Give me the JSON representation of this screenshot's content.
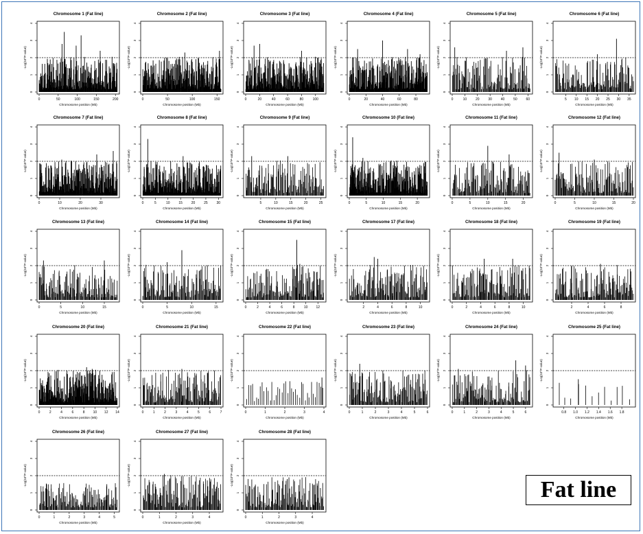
{
  "figure": {
    "legend_label": "Fat line"
  },
  "common": {
    "ylabel": "-Log(10^P-value)",
    "xlabel": "Chromosome position (Mb)",
    "y_ticks": [
      "0",
      "1",
      "2",
      "3",
      "4"
    ],
    "ylim": [
      0,
      4
    ],
    "threshold": 2.0,
    "threshold_style": "dashed",
    "bar_color": "#000000"
  },
  "chart_data": [
    {
      "type": "bar",
      "title": "Chromosome 1 (Fat line)",
      "xlim": [
        0,
        205
      ],
      "xticks": [
        "0",
        "50",
        "100",
        "150",
        "200"
      ],
      "peak": 3.5,
      "peaks": [
        [
          60,
          2.8
        ],
        [
          66,
          3.5
        ],
        [
          97,
          2.7
        ],
        [
          110,
          3.3
        ],
        [
          160,
          2.4
        ]
      ],
      "density": "high"
    },
    {
      "type": "bar",
      "title": "Chromosome 2 (Fat line)",
      "xlim": [
        0,
        158
      ],
      "xticks": [
        "0",
        "50",
        "100",
        "150"
      ],
      "peak": 2.4,
      "peaks": [
        [
          85,
          2.3
        ],
        [
          155,
          2.4
        ]
      ],
      "density": "high"
    },
    {
      "type": "bar",
      "title": "Chromosome 3 (Fat line)",
      "xlim": [
        0,
        112
      ],
      "xticks": [
        "0",
        "20",
        "40",
        "60",
        "80",
        "100"
      ],
      "peak": 2.8,
      "peaks": [
        [
          12,
          2.7
        ],
        [
          20,
          2.8
        ],
        [
          80,
          2.4
        ]
      ],
      "density": "high"
    },
    {
      "type": "bar",
      "title": "Chromosome 4 (Fat line)",
      "xlim": [
        0,
        94
      ],
      "xticks": [
        "0",
        "20",
        "40",
        "60",
        "80"
      ],
      "peak": 3.0,
      "peaks": [
        [
          10,
          2.5
        ],
        [
          40,
          3.0
        ],
        [
          70,
          2.5
        ],
        [
          85,
          2.2
        ]
      ],
      "density": "high"
    },
    {
      "type": "bar",
      "title": "Chromosome 5 (Fat line)",
      "xlim": [
        0,
        62
      ],
      "xticks": [
        "0",
        "10",
        "20",
        "30",
        "40",
        "50",
        "60"
      ],
      "peak": 2.6,
      "peaks": [
        [
          2,
          2.6
        ],
        [
          43,
          2.4
        ],
        [
          56,
          2.6
        ]
      ],
      "density": "medium"
    },
    {
      "type": "bar",
      "title": "Chromosome 6 (Fat line)",
      "xlim": [
        0,
        37
      ],
      "xticks": [
        "5",
        "10",
        "15",
        "20",
        "25",
        "30",
        "35"
      ],
      "peak": 3.1,
      "peaks": [
        [
          20,
          2.2
        ],
        [
          29,
          3.1
        ]
      ],
      "density": "medium"
    },
    {
      "type": "bar",
      "title": "Chromosome 7 (Fat line)",
      "xlim": [
        0,
        38
      ],
      "xticks": [
        "0",
        "10",
        "20",
        "30"
      ],
      "peak": 2.6,
      "peaks": [
        [
          11,
          2.1
        ],
        [
          28,
          2.4
        ],
        [
          36,
          2.6
        ]
      ],
      "density": "high"
    },
    {
      "type": "bar",
      "title": "Chromosome 8 (Fat line)",
      "xlim": [
        0,
        31
      ],
      "xticks": [
        "0",
        "5",
        "10",
        "15",
        "20",
        "25",
        "30"
      ],
      "peak": 3.3,
      "peaks": [
        [
          2,
          3.3
        ],
        [
          16,
          2.3
        ]
      ],
      "density": "high"
    },
    {
      "type": "bar",
      "title": "Chromosome 9 (Fat line)",
      "xlim": [
        0,
        26
      ],
      "xticks": [
        "5",
        "10",
        "15",
        "20",
        "25"
      ],
      "peak": 2.3,
      "peaks": [
        [
          2,
          2.3
        ],
        [
          14,
          2.3
        ]
      ],
      "density": "medium"
    },
    {
      "type": "bar",
      "title": "Chromosome 10 (Fat line)",
      "xlim": [
        0,
        23
      ],
      "xticks": [
        "0",
        "5",
        "10",
        "15",
        "20"
      ],
      "peak": 3.4,
      "peaks": [
        [
          1,
          3.4
        ],
        [
          4,
          2.2
        ]
      ],
      "density": "high"
    },
    {
      "type": "bar",
      "title": "Chromosome 11 (Fat line)",
      "xlim": [
        0,
        22
      ],
      "xticks": [
        "0",
        "5",
        "10",
        "15",
        "20"
      ],
      "peak": 2.9,
      "peaks": [
        [
          10,
          2.9
        ],
        [
          16,
          2.4
        ]
      ],
      "density": "medium"
    },
    {
      "type": "bar",
      "title": "Chromosome 12 (Fat line)",
      "xlim": [
        0,
        20
      ],
      "xticks": [
        "0",
        "5",
        "10",
        "15",
        "20"
      ],
      "peak": 2.5,
      "peaks": [
        [
          1,
          2.5
        ],
        [
          10,
          2.1
        ]
      ],
      "density": "medium"
    },
    {
      "type": "bar",
      "title": "Chromosome 13 (Fat line)",
      "xlim": [
        0,
        18
      ],
      "xticks": [
        "0",
        "5",
        "10",
        "15"
      ],
      "peak": 2.3,
      "peaks": [
        [
          1,
          2.3
        ],
        [
          15,
          2.3
        ]
      ],
      "density": "medium"
    },
    {
      "type": "bar",
      "title": "Chromosome 14 (Fat line)",
      "xlim": [
        0,
        16
      ],
      "xticks": [
        "0",
        "5",
        "10",
        "15"
      ],
      "peak": 2.9,
      "peaks": [
        [
          5,
          2.2
        ],
        [
          8,
          2.9
        ]
      ],
      "density": "medium"
    },
    {
      "type": "bar",
      "title": "Chromosome 15 (Fat line)",
      "xlim": [
        0,
        13
      ],
      "xticks": [
        "0",
        "2",
        "4",
        "6",
        "8",
        "10",
        "12"
      ],
      "peak": 3.5,
      "peaks": [
        [
          8.5,
          3.5
        ],
        [
          9,
          2.1
        ]
      ],
      "density": "medium"
    },
    {
      "type": "bar",
      "title": "Chromosome 17 (Fat line)",
      "xlim": [
        0,
        11
      ],
      "xticks": [
        "2",
        "4",
        "6",
        "8",
        "10"
      ],
      "peak": 2.5,
      "peaks": [
        [
          3.5,
          2.5
        ],
        [
          4,
          2.4
        ]
      ],
      "density": "medium"
    },
    {
      "type": "bar",
      "title": "Chromosome 18 (Fat line)",
      "xlim": [
        0,
        11
      ],
      "xticks": [
        "0",
        "2",
        "4",
        "6",
        "8",
        "10"
      ],
      "peak": 2.4,
      "peaks": [
        [
          4.5,
          2.4
        ],
        [
          8.5,
          2.4
        ]
      ],
      "density": "medium"
    },
    {
      "type": "bar",
      "title": "Chromosome 19 (Fat line)",
      "xlim": [
        0,
        9.5
      ],
      "xticks": [
        "2",
        "4",
        "6",
        "8"
      ],
      "peak": 2.1,
      "peaks": [
        [
          2,
          2.0
        ],
        [
          5.5,
          2.1
        ]
      ],
      "density": "medium"
    },
    {
      "type": "bar",
      "title": "Chromosome 20 (Fat line)",
      "xlim": [
        0,
        14
      ],
      "xticks": [
        "0",
        "2",
        "4",
        "6",
        "8",
        "10",
        "12",
        "14"
      ],
      "peak": 2.2,
      "peaks": [
        [
          8.5,
          2.2
        ],
        [
          9.5,
          2.1
        ]
      ],
      "density": "high"
    },
    {
      "type": "bar",
      "title": "Chromosome 21 (Fat line)",
      "xlim": [
        0,
        7
      ],
      "xticks": [
        "0",
        "1",
        "2",
        "3",
        "4",
        "5",
        "6",
        "7"
      ],
      "peak": 2.1,
      "peaks": [
        [
          3.5,
          2.1
        ]
      ],
      "density": "medium"
    },
    {
      "type": "bar",
      "title": "Chromosome 22 (Fat line)",
      "xlim": [
        0,
        4
      ],
      "xticks": [
        "0",
        "1",
        "2",
        "3",
        "4"
      ],
      "peak": 1.6,
      "peaks": [
        [
          3.9,
          1.6
        ]
      ],
      "density": "low"
    },
    {
      "type": "bar",
      "title": "Chromosome 23 (Fat line)",
      "xlim": [
        0,
        6
      ],
      "xticks": [
        "0",
        "1",
        "2",
        "3",
        "4",
        "5",
        "6"
      ],
      "peak": 2.4,
      "peaks": [
        [
          0.8,
          2.4
        ]
      ],
      "density": "medium"
    },
    {
      "type": "bar",
      "title": "Chromosome 24 (Fat line)",
      "xlim": [
        0,
        6.4
      ],
      "xticks": [
        "0",
        "1",
        "2",
        "3",
        "4",
        "5",
        "6"
      ],
      "peak": 2.6,
      "peaks": [
        [
          0.5,
          2.1
        ],
        [
          5.2,
          2.6
        ],
        [
          6,
          2.3
        ]
      ],
      "density": "medium"
    },
    {
      "type": "bar",
      "title": "Chromosome 25 (Fat line)",
      "xlim": [
        0.65,
        2.0
      ],
      "xticks": [
        "0.8",
        "1.0",
        "1.2",
        "1.4",
        "1.6",
        "1.8"
      ],
      "peak": 1.5,
      "peaks": [
        [
          1.05,
          1.5
        ]
      ],
      "density": "sparse"
    },
    {
      "type": "bar",
      "title": "Chromosome 26 (Fat line)",
      "xlim": [
        0,
        5.2
      ],
      "xticks": [
        "0",
        "1",
        "2",
        "3",
        "4",
        "5"
      ],
      "peak": 1.5,
      "peaks": [
        [
          0.5,
          1.5
        ],
        [
          4.5,
          1.5
        ]
      ],
      "density": "medium"
    },
    {
      "type": "bar",
      "title": "Chromosome 27 (Fat line)",
      "xlim": [
        0,
        4.7
      ],
      "xticks": [
        "0",
        "1",
        "2",
        "3",
        "4"
      ],
      "peak": 2.1,
      "peaks": [
        [
          1.3,
          2.1
        ]
      ],
      "density": "medium"
    },
    {
      "type": "bar",
      "title": "Chromosome 28 (Fat line)",
      "xlim": [
        0,
        4.7
      ],
      "xticks": [
        "0",
        "1",
        "2",
        "3",
        "4"
      ],
      "peak": 1.9,
      "peaks": [
        [
          2.5,
          1.8
        ],
        [
          2.6,
          1.9
        ]
      ],
      "density": "medium"
    }
  ]
}
